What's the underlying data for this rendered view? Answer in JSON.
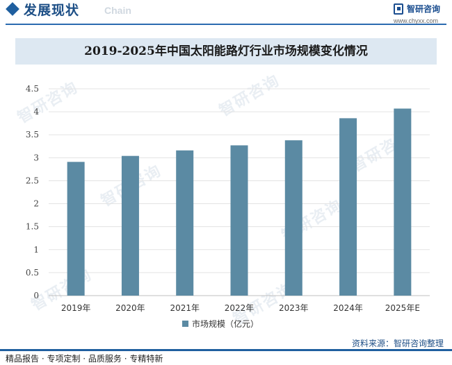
{
  "header": {
    "title": "发展现状",
    "subtitle": "Chain"
  },
  "logo": {
    "name": "智研咨询",
    "url": "www.chyxx.com"
  },
  "watermark": "智研咨询",
  "chart_data": {
    "type": "bar",
    "title": "2019-2025年中国太阳能路灯行业市场规模变化情况",
    "categories": [
      "2019年",
      "2020年",
      "2021年",
      "2022年",
      "2023年",
      "2024年",
      "2025年E"
    ],
    "series": [
      {
        "name": "市场规模（亿元）",
        "values": [
          2.91,
          3.04,
          3.16,
          3.27,
          3.38,
          3.86,
          4.07
        ]
      }
    ],
    "ylim": [
      0,
      4.5
    ],
    "yticks": [
      "0",
      "0.5",
      "1",
      "1.5",
      "2",
      "2.5",
      "3",
      "3.5",
      "4",
      "4.5"
    ],
    "grid": true,
    "legend": "bottom",
    "colors": {
      "bar": "#5b8aa3",
      "grid": "#e3e3e3",
      "axis": "#bfbfbf"
    }
  },
  "footer": {
    "left": "精品报告 · 专项定制 · 品质服务 · 专精特新",
    "source": "资料来源：智研咨询整理"
  }
}
